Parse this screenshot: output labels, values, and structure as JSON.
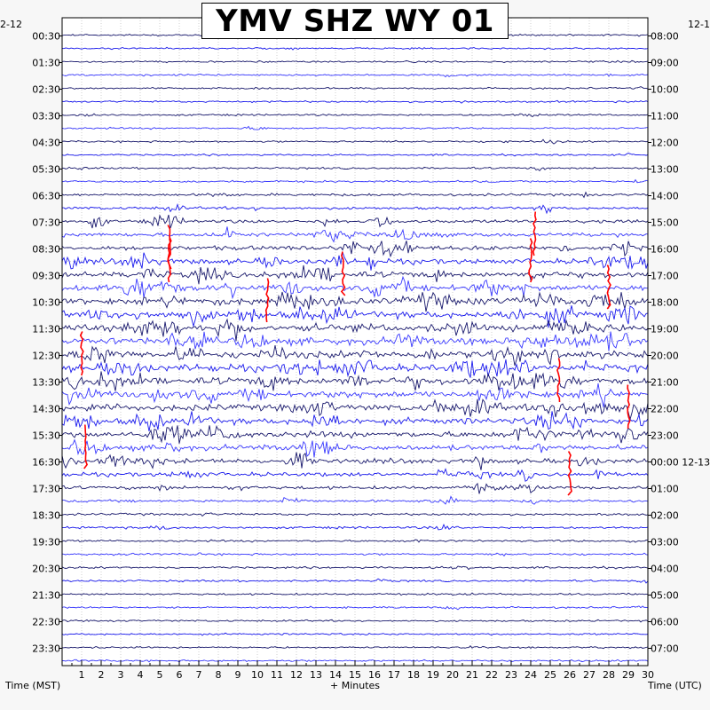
{
  "chart_data": {
    "type": "line",
    "title": "YMV SHZ WY 01",
    "date_left": "2-12",
    "date_right": "12-1",
    "xlabel": "+ Minutes",
    "ylabel_left": "Time (MST)",
    "ylabel_right": "Time (UTC)",
    "xlim": [
      0,
      30
    ],
    "x_ticks": [
      "1",
      "2",
      "3",
      "4",
      "5",
      "6",
      "7",
      "8",
      "9",
      "10",
      "11",
      "12",
      "13",
      "14",
      "15",
      "16",
      "17",
      "18",
      "19",
      "20",
      "21",
      "22",
      "23",
      "24",
      "25",
      "26",
      "27",
      "28",
      "29",
      "30"
    ],
    "left_ticks": [
      "00:30",
      "01:30",
      "02:30",
      "03:30",
      "04:30",
      "05:30",
      "06:30",
      "07:30",
      "08:30",
      "09:30",
      "10:30",
      "11:30",
      "12:30",
      "13:30",
      "14:30",
      "15:30",
      "16:30",
      "17:30",
      "18:30",
      "19:30",
      "20:30",
      "21:30",
      "22:30",
      "23:30"
    ],
    "right_ticks": [
      "08:00",
      "09:00",
      "10:00",
      "11:00",
      "12:00",
      "13:00",
      "14:00",
      "15:00",
      "16:00",
      "17:00",
      "18:00",
      "19:00",
      "20:00",
      "21:00",
      "22:00",
      "23:00",
      "00:00 12-13",
      "01:00",
      "02:00",
      "03:00",
      "04:00",
      "05:00",
      "06:00",
      "07:00"
    ],
    "trace_rows": 48,
    "minutes_per_row": 30,
    "colors": {
      "trace_dark": "#1a1a6e",
      "trace_blue": "#1a1aee",
      "trace_light": "#3a3aff",
      "clipped": "#ff0000",
      "grid": "#b0b0b0",
      "background": "#ffffff"
    },
    "activity_profile": [
      0.2,
      0.2,
      0.2,
      0.2,
      0.2,
      0.2,
      0.2,
      0.2,
      0.2,
      0.2,
      0.25,
      0.3,
      0.5,
      0.6,
      0.8,
      1.0,
      1.3,
      1.6,
      1.8,
      2.0,
      2.2,
      2.3,
      2.4,
      2.4,
      2.4,
      2.4,
      2.3,
      2.2,
      2.1,
      2.0,
      1.9,
      1.7,
      1.4,
      1.1,
      0.8,
      0.5,
      0.4,
      0.35,
      0.3,
      0.3,
      0.3,
      0.28,
      0.25,
      0.25,
      0.22,
      0.22,
      0.2,
      0.2
    ],
    "red_marks": [
      {
        "row": 16,
        "minute": 5.5
      },
      {
        "row": 17,
        "minute": 5.5
      },
      {
        "row": 15,
        "minute": 24.2
      },
      {
        "row": 17,
        "minute": 24.0
      },
      {
        "row": 18,
        "minute": 14.4
      },
      {
        "row": 19,
        "minute": 28.0
      },
      {
        "row": 20,
        "minute": 10.5
      },
      {
        "row": 24,
        "minute": 1.0
      },
      {
        "row": 26,
        "minute": 25.4
      },
      {
        "row": 28,
        "minute": 29.0
      },
      {
        "row": 31,
        "minute": 1.2
      },
      {
        "row": 33,
        "minute": 26.0
      }
    ]
  }
}
